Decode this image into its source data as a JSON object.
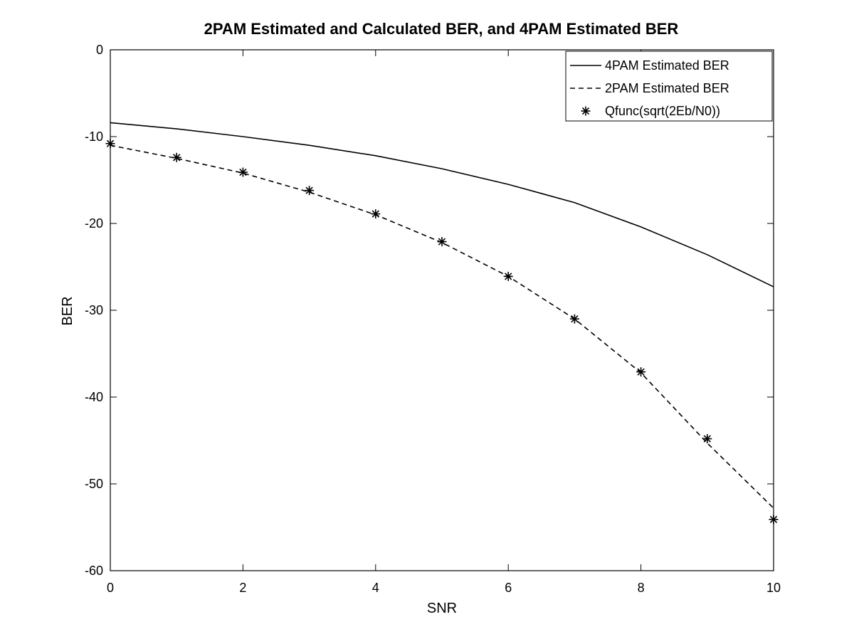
{
  "chart_data": {
    "type": "line",
    "title": "2PAM Estimated and Calculated BER, and 4PAM Estimated BER",
    "xlabel": "SNR",
    "ylabel": "BER",
    "xlim": [
      0,
      10
    ],
    "ylim": [
      -60,
      0
    ],
    "xticks": [
      0,
      2,
      4,
      6,
      8,
      10
    ],
    "yticks": [
      0,
      -10,
      -20,
      -30,
      -40,
      -50,
      -60
    ],
    "grid": false,
    "legend_position": "top-right",
    "x": [
      0,
      1,
      2,
      3,
      4,
      5,
      6,
      7,
      8,
      9,
      10
    ],
    "series": [
      {
        "name": "4PAM Estimated BER",
        "style": "solid",
        "values": [
          -8.4,
          -9.1,
          -10.0,
          -11.0,
          -12.2,
          -13.7,
          -15.5,
          -17.6,
          -20.4,
          -23.6,
          -27.3
        ]
      },
      {
        "name": "2PAM Estimated BER",
        "style": "dashed",
        "values": [
          -11.0,
          -12.5,
          -14.2,
          -16.4,
          -19.0,
          -22.2,
          -26.1,
          -31.0,
          -37.2,
          -45.3,
          -52.8
        ]
      },
      {
        "name": "Qfunc(sqrt(2Eb/N0))",
        "style": "marker-asterisk",
        "values": [
          -10.8,
          -12.4,
          -14.1,
          -16.2,
          -18.9,
          -22.1,
          -26.1,
          -31.0,
          -37.1,
          -44.8,
          -54.1
        ]
      }
    ]
  },
  "colors": {
    "line": "#000000",
    "background": "#ffffff"
  }
}
